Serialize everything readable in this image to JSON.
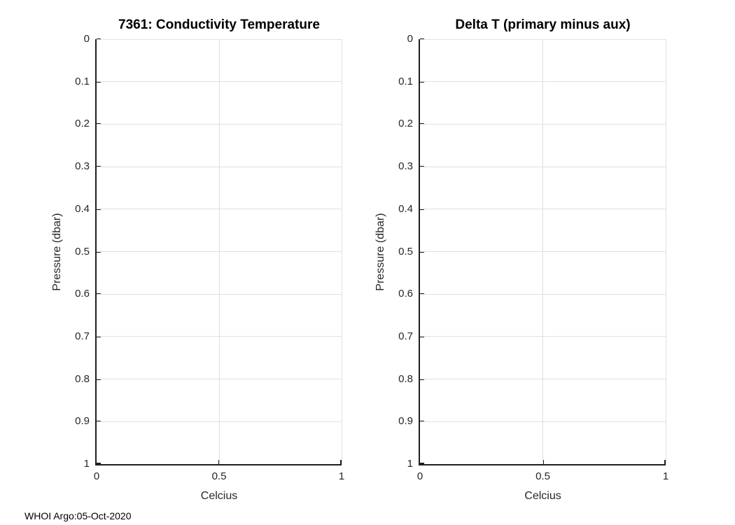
{
  "figure": {
    "footer": "WHOI Argo:05-Oct-2020",
    "background": "#ffffff"
  },
  "colors": {
    "axis": "#1f1f1f",
    "grid": "#e0e0e0",
    "tick_text": "#262626",
    "title_text": "#000000"
  },
  "chart_data": [
    {
      "type": "line",
      "title": "7361: Conductivity Temperature",
      "xlabel": "Celcius",
      "ylabel": "Pressure (dbar)",
      "xlim": [
        0,
        1
      ],
      "ylim": [
        0,
        1
      ],
      "y_axis_reversed": true,
      "grid": true,
      "legend": null,
      "xticks": [
        0,
        0.5,
        1
      ],
      "yticks": [
        0,
        0.1,
        0.2,
        0.3,
        0.4,
        0.5,
        0.6,
        0.7,
        0.8,
        0.9,
        1
      ],
      "series": []
    },
    {
      "type": "line",
      "title": "Delta T (primary minus aux)",
      "xlabel": "Celcius",
      "ylabel": "Pressure (dbar)",
      "xlim": [
        0,
        1
      ],
      "ylim": [
        0,
        1
      ],
      "y_axis_reversed": true,
      "grid": true,
      "legend": null,
      "xticks": [
        0,
        0.5,
        1
      ],
      "yticks": [
        0,
        0.1,
        0.2,
        0.3,
        0.4,
        0.5,
        0.6,
        0.7,
        0.8,
        0.9,
        1
      ],
      "series": []
    }
  ]
}
